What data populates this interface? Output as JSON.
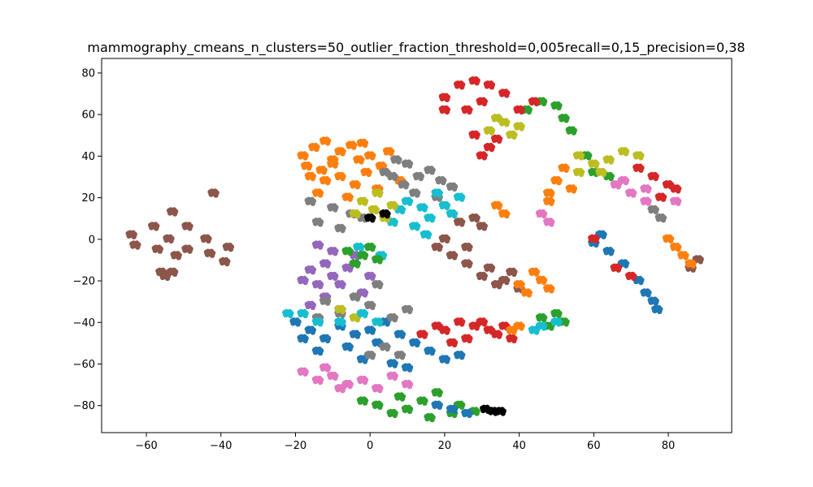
{
  "chart_data": {
    "type": "scatter",
    "title": "mammography_cmeans_n_clusters=50_outlier_fraction_threshold=0,005recall=0,15_precision=0,38",
    "xlabel": "",
    "ylabel": "",
    "xlim": [
      -72,
      97
    ],
    "ylim": [
      -93,
      87
    ],
    "xticks": [
      -60,
      -40,
      -20,
      0,
      20,
      40,
      60,
      80
    ],
    "yticks": [
      -80,
      -60,
      -40,
      -20,
      0,
      20,
      40,
      60,
      80
    ],
    "grid": false,
    "colors": {
      "blue": "#1f77b4",
      "orange": "#ff7f0e",
      "green": "#2ca02c",
      "red": "#d62728",
      "purple": "#9467bd",
      "brown": "#8c564b",
      "pink": "#e377c2",
      "gray": "#7f7f7f",
      "olive": "#bcbd22",
      "cyan": "#17becf",
      "black": "#000000"
    },
    "clusters": [
      {
        "color": "brown",
        "points": [
          [
            -64,
            2
          ],
          [
            -63,
            -3
          ],
          [
            -58,
            6
          ],
          [
            -57,
            -5
          ],
          [
            -53,
            13
          ],
          [
            -52,
            -8
          ],
          [
            -54,
            0
          ],
          [
            -49,
            6
          ],
          [
            -49,
            -5
          ],
          [
            -44,
            0
          ],
          [
            -43,
            -7
          ],
          [
            -42,
            22
          ],
          [
            -38,
            -4
          ],
          [
            -39,
            -11
          ],
          [
            -56,
            -16
          ],
          [
            -55,
            -18
          ],
          [
            -53,
            -16
          ]
        ]
      },
      {
        "color": "orange",
        "points": [
          [
            -18,
            40
          ],
          [
            -15,
            44
          ],
          [
            -12,
            47
          ],
          [
            -10,
            36
          ],
          [
            -8,
            42
          ],
          [
            -5,
            45
          ],
          [
            -3,
            38
          ],
          [
            0,
            40
          ],
          [
            3,
            35
          ],
          [
            5,
            42
          ],
          [
            -16,
            30
          ],
          [
            -12,
            28
          ],
          [
            -8,
            30
          ],
          [
            -4,
            26
          ],
          [
            -1,
            32
          ],
          [
            -14,
            22
          ],
          [
            -6,
            20
          ],
          [
            2,
            24
          ],
          [
            8,
            28
          ],
          [
            -10,
            38
          ],
          [
            -2,
            46
          ],
          [
            -17,
            35
          ],
          [
            -13,
            33
          ]
        ]
      },
      {
        "color": "gray",
        "points": [
          [
            4,
            32
          ],
          [
            7,
            38
          ],
          [
            10,
            36
          ],
          [
            13,
            30
          ],
          [
            16,
            33
          ],
          [
            19,
            28
          ],
          [
            22,
            25
          ],
          [
            9,
            26
          ],
          [
            12,
            22
          ],
          [
            -16,
            18
          ],
          [
            -10,
            15
          ],
          [
            -5,
            12
          ],
          [
            -14,
            8
          ],
          [
            -8,
            5
          ],
          [
            -2,
            10
          ],
          [
            18,
            20
          ],
          [
            6,
            30
          ]
        ]
      },
      {
        "color": "cyan",
        "points": [
          [
            10,
            18
          ],
          [
            14,
            15
          ],
          [
            18,
            22
          ],
          [
            20,
            16
          ],
          [
            16,
            10
          ],
          [
            12,
            6
          ],
          [
            22,
            12
          ],
          [
            8,
            14
          ],
          [
            6,
            8
          ],
          [
            -3,
            -4
          ],
          [
            3,
            -8
          ],
          [
            24,
            20
          ],
          [
            15,
            2
          ]
        ]
      },
      {
        "color": "olive",
        "points": [
          [
            -2,
            18
          ],
          [
            2,
            22
          ],
          [
            1,
            14
          ],
          [
            -4,
            12
          ],
          [
            6,
            16
          ],
          [
            4,
            10
          ]
        ]
      },
      {
        "color": "black",
        "points": [
          [
            0,
            10
          ],
          [
            4,
            12
          ],
          [
            31,
            -82
          ],
          [
            33,
            -83
          ],
          [
            35,
            -83
          ]
        ]
      },
      {
        "color": "purple",
        "points": [
          [
            -14,
            -3
          ],
          [
            -10,
            -6
          ],
          [
            -12,
            -12
          ],
          [
            -16,
            -15
          ],
          [
            -18,
            -20
          ],
          [
            -14,
            -22
          ],
          [
            -10,
            -18
          ],
          [
            -6,
            -14
          ],
          [
            -8,
            -22
          ],
          [
            -12,
            -28
          ],
          [
            -16,
            -32
          ],
          [
            -4,
            -8
          ],
          [
            0,
            -18
          ],
          [
            -2,
            -26
          ],
          [
            -8,
            -34
          ]
        ]
      },
      {
        "color": "green",
        "points": [
          [
            -6,
            -6
          ],
          [
            -2,
            -8
          ],
          [
            2,
            -10
          ],
          [
            -4,
            -12
          ],
          [
            0,
            -4
          ],
          [
            42,
            62
          ],
          [
            46,
            66
          ],
          [
            50,
            64
          ],
          [
            52,
            58
          ],
          [
            54,
            52
          ],
          [
            58,
            40
          ],
          [
            60,
            32
          ],
          [
            64,
            30
          ],
          [
            46,
            -38
          ],
          [
            50,
            -36
          ],
          [
            52,
            -40
          ],
          [
            48,
            -42
          ],
          [
            -2,
            -78
          ],
          [
            2,
            -80
          ],
          [
            6,
            -84
          ],
          [
            10,
            -82
          ],
          [
            14,
            -78
          ],
          [
            18,
            -74
          ],
          [
            8,
            -76
          ],
          [
            24,
            -80
          ],
          [
            28,
            -83
          ],
          [
            22,
            -84
          ],
          [
            16,
            -86
          ]
        ]
      },
      {
        "color": "pink",
        "points": [
          [
            -18,
            -64
          ],
          [
            -14,
            -68
          ],
          [
            -10,
            -66
          ],
          [
            -6,
            -70
          ],
          [
            -2,
            -68
          ],
          [
            2,
            -72
          ],
          [
            6,
            -66
          ],
          [
            -12,
            -62
          ],
          [
            -8,
            -72
          ],
          [
            10,
            -70
          ],
          [
            66,
            26
          ],
          [
            70,
            22
          ],
          [
            74,
            24
          ],
          [
            78,
            20
          ],
          [
            82,
            18
          ],
          [
            74,
            18
          ],
          [
            46,
            12
          ],
          [
            48,
            8
          ],
          [
            68,
            28
          ]
        ]
      },
      {
        "color": "blue",
        "points": [
          [
            -20,
            -40
          ],
          [
            -16,
            -44
          ],
          [
            -12,
            -48
          ],
          [
            -8,
            -42
          ],
          [
            -4,
            -46
          ],
          [
            0,
            -44
          ],
          [
            2,
            -50
          ],
          [
            -6,
            -52
          ],
          [
            -14,
            -54
          ],
          [
            -18,
            -48
          ],
          [
            4,
            -40
          ],
          [
            8,
            -46
          ],
          [
            12,
            -50
          ],
          [
            16,
            -54
          ],
          [
            20,
            -58
          ],
          [
            24,
            -56
          ],
          [
            -2,
            -58
          ],
          [
            6,
            -60
          ],
          [
            10,
            -62
          ],
          [
            22,
            -82
          ],
          [
            18,
            -80
          ],
          [
            26,
            -84
          ],
          [
            60,
            -2
          ],
          [
            64,
            -6
          ],
          [
            68,
            -12
          ],
          [
            72,
            -20
          ],
          [
            74,
            -26
          ],
          [
            76,
            -30
          ],
          [
            77,
            -34
          ],
          [
            62,
            2
          ]
        ]
      },
      {
        "color": "red",
        "points": [
          [
            20,
            -44
          ],
          [
            24,
            -40
          ],
          [
            28,
            -42
          ],
          [
            32,
            -44
          ],
          [
            26,
            -48
          ],
          [
            22,
            -50
          ],
          [
            18,
            -42
          ],
          [
            14,
            -46
          ],
          [
            30,
            -40
          ],
          [
            34,
            -46
          ],
          [
            36,
            -42
          ],
          [
            38,
            -48
          ],
          [
            20,
            68
          ],
          [
            24,
            74
          ],
          [
            28,
            76
          ],
          [
            32,
            74
          ],
          [
            36,
            70
          ],
          [
            30,
            66
          ],
          [
            26,
            62
          ],
          [
            20,
            62
          ],
          [
            40,
            62
          ],
          [
            44,
            66
          ],
          [
            28,
            50
          ],
          [
            32,
            44
          ],
          [
            30,
            40
          ],
          [
            34,
            48
          ],
          [
            76,
            30
          ],
          [
            80,
            26
          ],
          [
            78,
            20
          ],
          [
            82,
            24
          ],
          [
            72,
            34
          ],
          [
            66,
            -14
          ],
          [
            70,
            -18
          ],
          [
            60,
            0
          ]
        ]
      },
      {
        "color": "brown",
        "points": [
          [
            20,
            0
          ],
          [
            24,
            8
          ],
          [
            28,
            10
          ],
          [
            30,
            6
          ],
          [
            26,
            -4
          ],
          [
            22,
            -8
          ],
          [
            18,
            -4
          ],
          [
            32,
            -14
          ],
          [
            36,
            -20
          ],
          [
            40,
            -24
          ],
          [
            34,
            -22
          ],
          [
            30,
            -18
          ],
          [
            26,
            -12
          ],
          [
            38,
            -16
          ],
          [
            88,
            -10
          ],
          [
            86,
            -14
          ]
        ]
      },
      {
        "color": "gray",
        "points": [
          [
            -12,
            -30
          ],
          [
            -8,
            -36
          ],
          [
            -4,
            -28
          ],
          [
            0,
            -32
          ],
          [
            2,
            -22
          ],
          [
            -14,
            -38
          ],
          [
            6,
            -38
          ],
          [
            10,
            -34
          ],
          [
            4,
            -52
          ],
          [
            8,
            -56
          ],
          [
            0,
            -56
          ],
          [
            76,
            14
          ],
          [
            78,
            10
          ]
        ]
      },
      {
        "color": "orange",
        "points": [
          [
            48,
            22
          ],
          [
            50,
            28
          ],
          [
            52,
            34
          ],
          [
            48,
            18
          ],
          [
            54,
            24
          ],
          [
            44,
            -16
          ],
          [
            46,
            -20
          ],
          [
            48,
            -24
          ],
          [
            42,
            -26
          ],
          [
            40,
            -22
          ],
          [
            82,
            -4
          ],
          [
            84,
            -8
          ],
          [
            86,
            -12
          ],
          [
            80,
            0
          ],
          [
            36,
            12
          ],
          [
            34,
            16
          ],
          [
            38,
            -44
          ],
          [
            40,
            -42
          ]
        ]
      },
      {
        "color": "olive",
        "points": [
          [
            32,
            52
          ],
          [
            36,
            56
          ],
          [
            40,
            54
          ],
          [
            38,
            50
          ],
          [
            34,
            58
          ],
          [
            56,
            40
          ],
          [
            60,
            36
          ],
          [
            64,
            38
          ],
          [
            68,
            42
          ],
          [
            72,
            40
          ],
          [
            62,
            32
          ],
          [
            56,
            32
          ],
          [
            -8,
            -34
          ],
          [
            -4,
            -38
          ]
        ]
      },
      {
        "color": "cyan",
        "points": [
          [
            -22,
            -36
          ],
          [
            -18,
            -36
          ],
          [
            -14,
            -40
          ],
          [
            -8,
            -40
          ],
          [
            -2,
            -36
          ],
          [
            2,
            -40
          ],
          [
            46,
            -42
          ],
          [
            44,
            -44
          ],
          [
            50,
            -40
          ]
        ]
      }
    ]
  }
}
